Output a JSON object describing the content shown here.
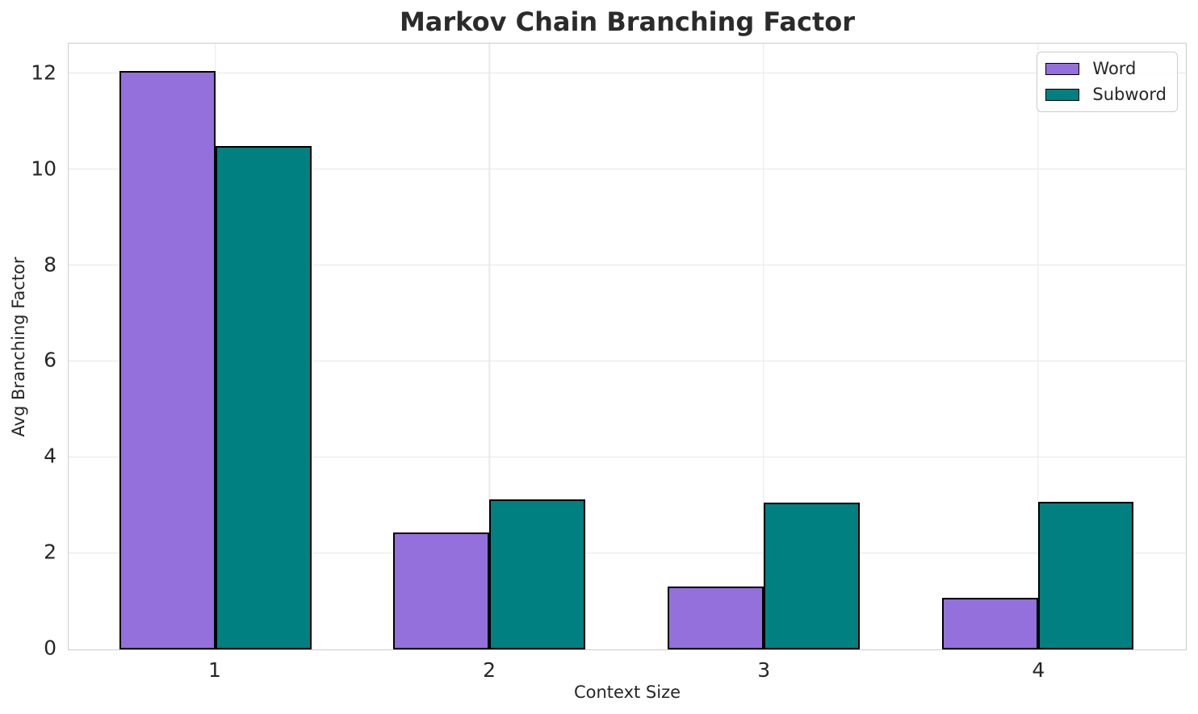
{
  "chart_data": {
    "type": "bar",
    "title": "Markov Chain Branching Factor",
    "xlabel": "Context Size",
    "ylabel": "Avg Branching Factor",
    "categories": [
      "1",
      "2",
      "3",
      "4"
    ],
    "x": [
      1,
      2,
      3,
      4
    ],
    "series": [
      {
        "name": "Word",
        "color": "#9370DB",
        "values": [
          12.05,
          2.43,
          1.31,
          1.08
        ]
      },
      {
        "name": "Subword",
        "color": "#008080",
        "values": [
          10.48,
          3.13,
          3.06,
          3.08
        ]
      }
    ],
    "yticks": [
      0,
      2,
      4,
      6,
      8,
      10,
      12
    ],
    "ylim": [
      0,
      12.62
    ],
    "xlim": [
      0.465,
      4.54
    ],
    "bar_width": 0.35,
    "bar_edge_color": "#000000",
    "grid": true,
    "legend_position": "upper right"
  }
}
